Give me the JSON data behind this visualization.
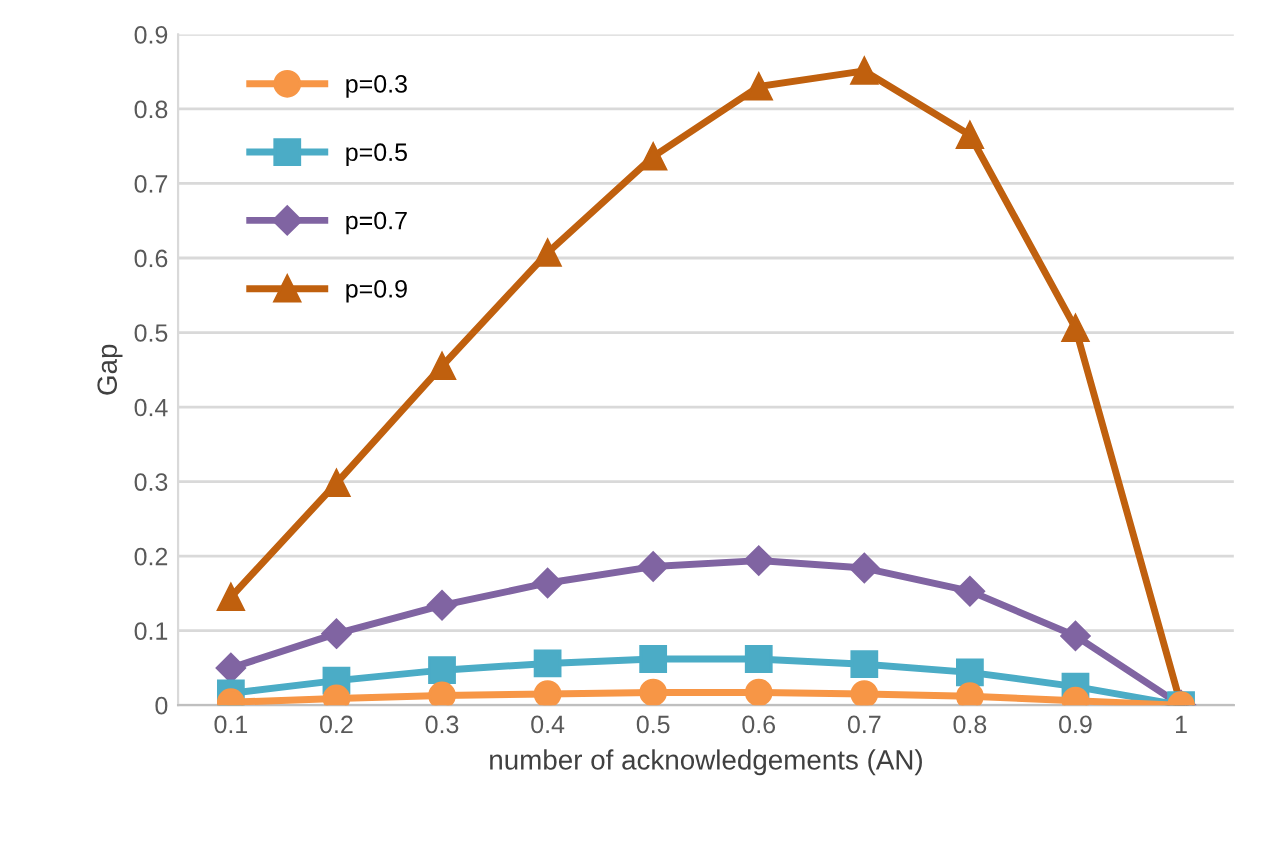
{
  "chart_data": {
    "type": "line",
    "xlabel": "number of acknowledgements (AN)",
    "ylabel": "Gap",
    "categories": [
      "0.1",
      "0.2",
      "0.3",
      "0.4",
      "0.5",
      "0.6",
      "0.7",
      "0.8",
      "0.9",
      "1"
    ],
    "series": [
      {
        "name": "p=0.3",
        "color": "#f79646",
        "marker": "circle",
        "values": [
          0.004,
          0.009,
          0.013,
          0.015,
          0.017,
          0.017,
          0.015,
          0.012,
          0.006,
          0
        ]
      },
      {
        "name": "p=0.5",
        "color": "#4bacc6",
        "marker": "square",
        "values": [
          0.016,
          0.033,
          0.047,
          0.056,
          0.062,
          0.062,
          0.055,
          0.044,
          0.025,
          0
        ]
      },
      {
        "name": "p=0.7",
        "color": "#8064a2",
        "marker": "diamond",
        "values": [
          0.05,
          0.096,
          0.134,
          0.164,
          0.186,
          0.194,
          0.184,
          0.153,
          0.093,
          0
        ]
      },
      {
        "name": "p=0.9",
        "color": "#c0600e",
        "marker": "triangle",
        "values": [
          0.145,
          0.298,
          0.455,
          0.607,
          0.736,
          0.83,
          0.851,
          0.765,
          0.506,
          0
        ]
      }
    ],
    "ylim": [
      0,
      0.9
    ],
    "yticks": [
      0,
      0.1,
      0.2,
      0.3,
      0.4,
      0.5,
      0.6,
      0.7,
      0.8,
      0.9
    ],
    "grid": "y",
    "legend": "top left",
    "line_style": "solid"
  }
}
